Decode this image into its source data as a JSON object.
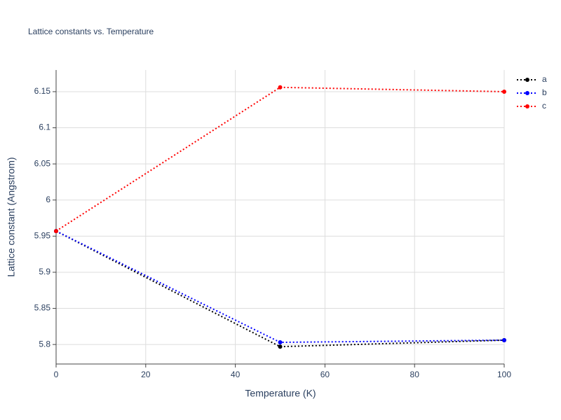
{
  "chart_data": {
    "type": "line",
    "title": "Lattice constants vs. Temperature",
    "x_label": "Temperature (K)",
    "y_label": "Lattice constant (Angstrom)",
    "x": [
      0,
      50,
      100
    ],
    "series": [
      {
        "name": "a",
        "color": "#000000",
        "values": [
          5.957,
          5.797,
          5.806
        ]
      },
      {
        "name": "b",
        "color": "#0000ff",
        "values": [
          5.957,
          5.803,
          5.806
        ]
      },
      {
        "name": "c",
        "color": "#ff0000",
        "values": [
          5.957,
          6.156,
          6.15
        ]
      }
    ],
    "xlim": [
      0,
      100
    ],
    "xticks": [
      0,
      20,
      40,
      60,
      80,
      100
    ],
    "ylim": [
      5.773,
      6.18
    ],
    "yticks": [
      5.8,
      5.85,
      5.9,
      5.95,
      6,
      6.05,
      6.1,
      6.15
    ],
    "grid": true,
    "legend": "top-right"
  }
}
